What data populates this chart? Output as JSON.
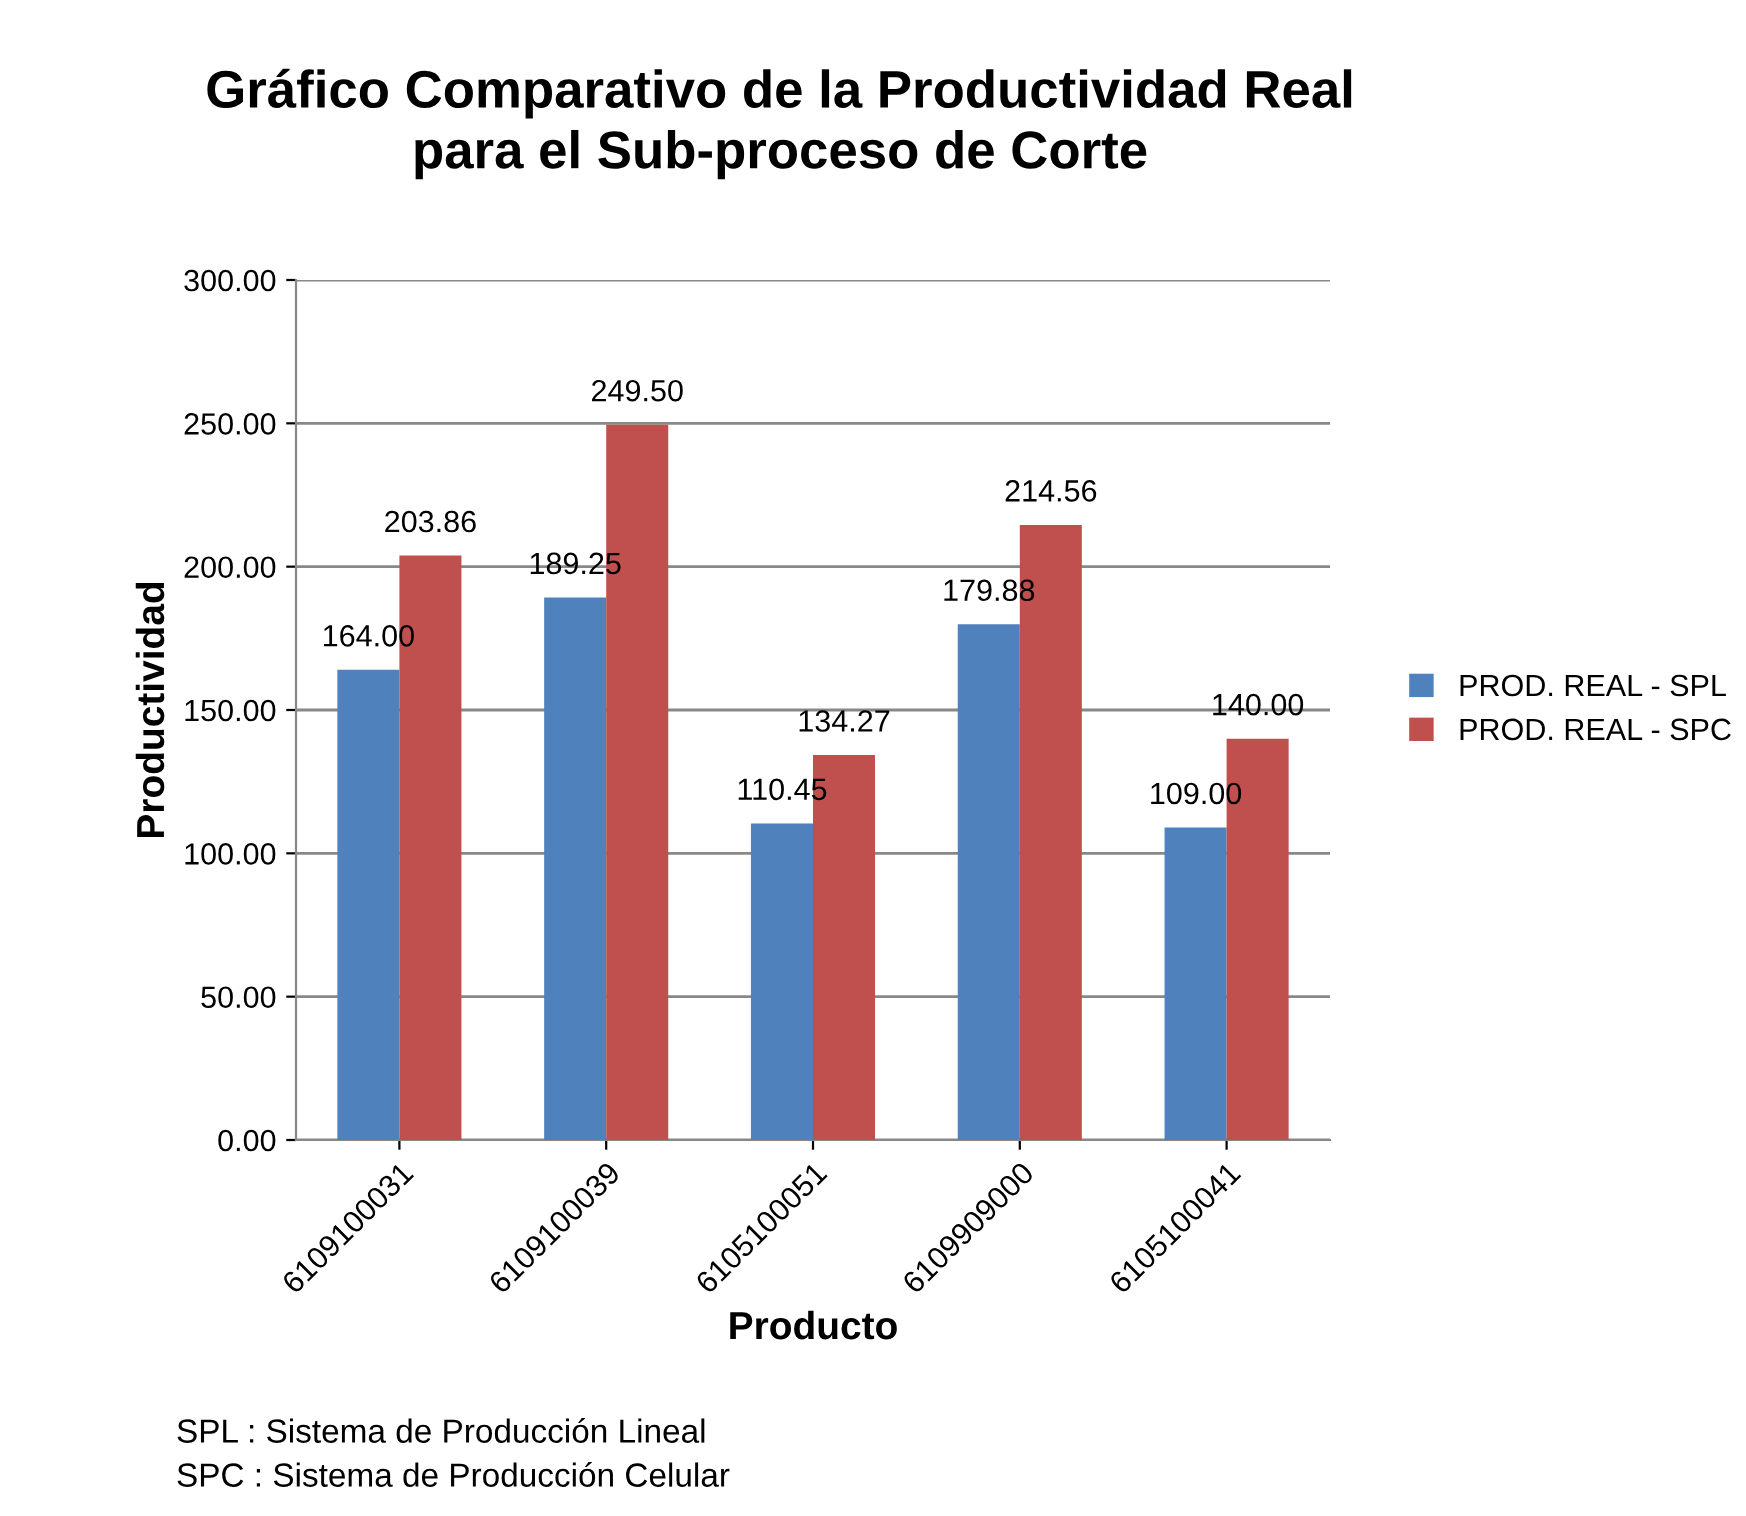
{
  "chart_data": {
    "type": "bar",
    "title": "Gráfico Comparativo de la Productividad Real\npara el Sub-proceso de Corte",
    "xlabel": "Producto",
    "ylabel": "Productividad",
    "categories": [
      "6109100031",
      "6109100039",
      "6105100051",
      "6109909000",
      "6105100041"
    ],
    "series": [
      {
        "name": "PROD. REAL - SPL",
        "color": "#4f81bd",
        "values": [
          164.0,
          189.25,
          110.45,
          179.88,
          109.0
        ],
        "value_labels": [
          "164.00",
          "189.25",
          "110.45",
          "179.88",
          "109.00"
        ]
      },
      {
        "name": "PROD. REAL - SPC",
        "color": "#c0504d",
        "values": [
          203.86,
          249.5,
          134.27,
          214.56,
          140.0
        ],
        "value_labels": [
          "203.86",
          "249.50",
          "134.27",
          "214.56",
          "140.00"
        ]
      }
    ],
    "ylim": [
      0,
      300
    ],
    "yticks": [
      {
        "value": 0,
        "label": "0.00"
      },
      {
        "value": 50,
        "label": "50.00"
      },
      {
        "value": 100,
        "label": "100.00"
      },
      {
        "value": 150,
        "label": "150.00"
      },
      {
        "value": 200,
        "label": "200.00"
      },
      {
        "value": 250,
        "label": "250.00"
      },
      {
        "value": 300,
        "label": "300.00"
      }
    ],
    "grid": "y",
    "legend": "right",
    "annotations": [
      "SPL : Sistema de Producción Lineal",
      "SPC : Sistema de Producción Celular"
    ]
  }
}
